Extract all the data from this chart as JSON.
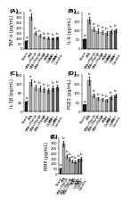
{
  "panels": [
    {
      "label": "(A)",
      "ylabel": "TNF-α (pg/mL)",
      "ylim": [
        0,
        350
      ],
      "yticks": [
        0,
        50,
        100,
        150,
        200,
        250,
        300,
        350
      ],
      "values": [
        80,
        310,
        155,
        130,
        110,
        105,
        100,
        108
      ],
      "errors": [
        8,
        28,
        16,
        14,
        12,
        11,
        10,
        12
      ],
      "colors": [
        "#1a1a1a",
        "#aaaaaa",
        "#c0c0c0",
        "#b0b0b0",
        "#c8c8c8",
        "#909090",
        "#686868",
        "#505050"
      ]
    },
    {
      "label": "(B)",
      "ylabel": "IL-6 (pg/mL)",
      "ylim": [
        0,
        200
      ],
      "yticks": [
        0,
        50,
        100,
        150,
        200
      ],
      "values": [
        52,
        160,
        108,
        98,
        92,
        88,
        98,
        102
      ],
      "errors": [
        6,
        18,
        13,
        12,
        10,
        9,
        11,
        12
      ],
      "colors": [
        "#1a1a1a",
        "#aaaaaa",
        "#c0c0c0",
        "#b0b0b0",
        "#c8c8c8",
        "#909090",
        "#686868",
        "#505050"
      ]
    },
    {
      "label": "(C)",
      "ylabel": "IL-1β (pg/mL)",
      "ylim": [
        0,
        160
      ],
      "yticks": [
        0,
        40,
        80,
        120,
        160
      ],
      "values": [
        42,
        128,
        108,
        102,
        98,
        93,
        103,
        108
      ],
      "errors": [
        5,
        14,
        12,
        11,
        10,
        9,
        11,
        12
      ],
      "colors": [
        "#1a1a1a",
        "#aaaaaa",
        "#c0c0c0",
        "#b0b0b0",
        "#c8c8c8",
        "#909090",
        "#686868",
        "#505050"
      ]
    },
    {
      "label": "(D)",
      "ylabel": "PGE2 (pg/mL)",
      "ylim": [
        0,
        200
      ],
      "yticks": [
        0,
        50,
        100,
        150,
        200
      ],
      "values": [
        38,
        170,
        88,
        72,
        68,
        63,
        78,
        88
      ],
      "errors": [
        4,
        20,
        10,
        8,
        8,
        7,
        9,
        10
      ],
      "colors": [
        "#1a1a1a",
        "#aaaaaa",
        "#c0c0c0",
        "#b0b0b0",
        "#c8c8c8",
        "#909090",
        "#686868",
        "#505050"
      ]
    },
    {
      "label": "(E)",
      "ylabel": "MMP (pg/mL)",
      "ylim": [
        0,
        350
      ],
      "yticks": [
        0,
        50,
        100,
        150,
        200,
        250,
        300,
        350
      ],
      "values": [
        58,
        295,
        175,
        148,
        128,
        118,
        138,
        152
      ],
      "errors": [
        6,
        26,
        19,
        16,
        13,
        12,
        14,
        17
      ],
      "colors": [
        "#1a1a1a",
        "#aaaaaa",
        "#c0c0c0",
        "#b0b0b0",
        "#c8c8c8",
        "#909090",
        "#686868",
        "#505050"
      ]
    }
  ],
  "group_labels": [
    "Sham",
    "MIA",
    "MIA+Manja\nL",
    "MIA+Manja\nM",
    "MIA+Manja\nH",
    "MIA+\nDiclof.",
    "MIA+\nCelec.",
    "MIA+\nCombo"
  ],
  "background_color": "#ffffff",
  "tick_fontsize": 2.8,
  "ylabel_fontsize": 3.5,
  "panel_label_fontsize": 4.5,
  "sig_fontsize": 3.0,
  "bar_width": 0.72
}
